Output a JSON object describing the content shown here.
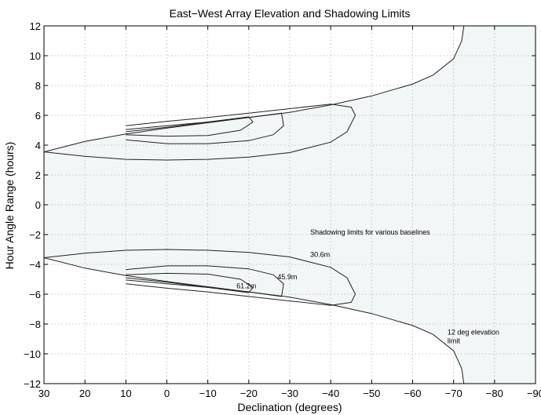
{
  "chart_data": {
    "type": "line",
    "title": "East−West Array Elevation and Shadowing Limits",
    "xlabel": "Declination (degrees)",
    "ylabel": "Hour Angle Range (hours)",
    "xlim": [
      30,
      -90
    ],
    "ylim": [
      -12,
      12
    ],
    "x_ticks": [
      "30",
      "20",
      "10",
      "0",
      "−10",
      "−20",
      "−30",
      "−40",
      "−50",
      "−60",
      "−70",
      "−80",
      "−90"
    ],
    "y_ticks": [
      "12",
      "10",
      "8",
      "6",
      "4",
      "2",
      "0",
      "−2",
      "−4",
      "−6",
      "−8",
      "−10",
      "−12"
    ],
    "grid": true,
    "colors": {
      "shade": "#f2f6f7",
      "line": "#222222"
    },
    "series": [
      {
        "name": "12 deg elevation limit",
        "x": [
          30,
          20,
          10,
          0,
          -10,
          -20,
          -30,
          -40,
          -50,
          -60,
          -65,
          -70,
          -72,
          -72.5
        ],
        "y": [
          3.55,
          4.25,
          4.75,
          5.15,
          5.5,
          5.85,
          6.2,
          6.7,
          7.3,
          8.1,
          8.7,
          9.8,
          11.0,
          12.0
        ]
      },
      {
        "name": "30.6m",
        "x": [
          30,
          20,
          10,
          0,
          -10,
          -20,
          -30,
          -40,
          -44,
          -46,
          -45,
          -40,
          -30,
          -20,
          -10,
          0,
          10
        ],
        "y": [
          3.55,
          3.25,
          3.05,
          3.0,
          3.05,
          3.2,
          3.5,
          4.2,
          4.9,
          6.0,
          6.55,
          6.75,
          6.45,
          6.15,
          5.85,
          5.6,
          5.3
        ]
      },
      {
        "name": "45.9m",
        "x": [
          10,
          0,
          -10,
          -20,
          -26,
          -28.5,
          -28,
          -20,
          -10,
          0,
          10
        ],
        "y": [
          4.35,
          4.1,
          4.1,
          4.3,
          4.7,
          5.3,
          6.15,
          5.85,
          5.55,
          5.3,
          5.05
        ]
      },
      {
        "name": "61.2m",
        "x": [
          10,
          0,
          -10,
          -18,
          -21,
          -20,
          -10,
          0,
          10
        ],
        "y": [
          4.7,
          4.6,
          4.65,
          5.0,
          5.55,
          5.9,
          5.55,
          5.2,
          4.9
        ]
      }
    ],
    "symmetric_about_y0": true,
    "annotations": [
      {
        "text": "Shadowing limits for various baselines",
        "x": -35,
        "y": -2.0
      },
      {
        "text": "30.6m",
        "x": -35,
        "y": -3.5
      },
      {
        "text": "45.9m",
        "x": -27,
        "y": -5.0
      },
      {
        "text": "61.2m",
        "x": -17,
        "y": -5.6
      },
      {
        "text": "12 deg elevation",
        "x": -68.5,
        "y": -8.7
      },
      {
        "text": "limit",
        "x": -68.5,
        "y": -9.3
      }
    ]
  }
}
